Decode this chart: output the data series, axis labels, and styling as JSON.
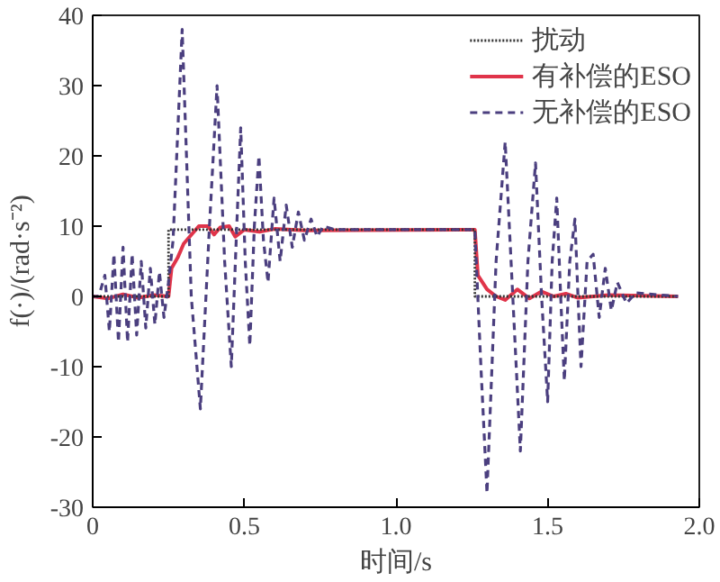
{
  "chart_data": {
    "type": "line",
    "xlabel": "时间/s",
    "ylabel": "f(·)/(rad·s⁻²)",
    "xlim": [
      0,
      2
    ],
    "ylim": [
      -30,
      40
    ],
    "xticks": [
      0,
      0.5,
      {
        "value": 1,
        "label": "1.0"
      },
      1.5,
      {
        "value": 2,
        "label": "2.0"
      }
    ],
    "yticks": [
      -30,
      -20,
      -10,
      0,
      10,
      20,
      30,
      40
    ],
    "grid": false,
    "legend": "top right",
    "series": [
      {
        "name": "扰动",
        "color": "#333333",
        "line_style": "dotted",
        "x": [
          0,
          0.25,
          0.25,
          1.26,
          1.26,
          1.93
        ],
        "values": [
          0,
          0,
          9.5,
          9.5,
          0,
          0
        ]
      },
      {
        "name": "有补偿的ESO",
        "color": "#e0344a",
        "line_style": "solid",
        "x": [
          0,
          0.05,
          0.1,
          0.15,
          0.2,
          0.25,
          0.26,
          0.28,
          0.3,
          0.33,
          0.35,
          0.38,
          0.4,
          0.42,
          0.45,
          0.47,
          0.5,
          0.55,
          0.6,
          0.7,
          1.26,
          1.27,
          1.3,
          1.33,
          1.36,
          1.4,
          1.44,
          1.48,
          1.52,
          1.56,
          1.6,
          1.7,
          1.93
        ],
        "values": [
          0,
          -0.3,
          0.3,
          -0.2,
          0.2,
          0,
          4,
          5.5,
          7.5,
          9,
          10,
          10,
          8.8,
          9.8,
          10,
          8.5,
          9.5,
          9.2,
          9.6,
          9.4,
          9.5,
          3,
          1,
          0,
          -0.5,
          1,
          -0.3,
          0.7,
          0,
          0.4,
          -0.2,
          0.2,
          0
        ]
      },
      {
        "name": "无补偿的ESO",
        "color": "#4b3f7f",
        "line_style": "dashed",
        "x": [
          0,
          0.02,
          0.04,
          0.055,
          0.07,
          0.085,
          0.1,
          0.115,
          0.13,
          0.145,
          0.16,
          0.175,
          0.19,
          0.205,
          0.22,
          0.235,
          0.25,
          0.265,
          0.295,
          0.325,
          0.355,
          0.385,
          0.41,
          0.435,
          0.457,
          0.475,
          0.488,
          0.503,
          0.518,
          0.533,
          0.548,
          0.563,
          0.578,
          0.598,
          0.618,
          0.638,
          0.658,
          0.678,
          0.698,
          0.72,
          0.74,
          0.76,
          0.8,
          1.26,
          1.28,
          1.3,
          1.33,
          1.36,
          1.385,
          1.41,
          1.435,
          1.46,
          1.48,
          1.5,
          1.515,
          1.53,
          1.543,
          1.555,
          1.573,
          1.59,
          1.6,
          1.61,
          1.63,
          1.65,
          1.67,
          1.69,
          1.71,
          1.73,
          1.76,
          1.79,
          1.93
        ],
        "values": [
          0,
          0,
          3,
          -5,
          6,
          -6.5,
          7,
          -6.5,
          6,
          -5.5,
          5,
          -4.5,
          4,
          -4,
          3.5,
          -3,
          2,
          8,
          38,
          0,
          -16,
          10,
          30,
          5,
          -10,
          10,
          24,
          5,
          -7,
          10,
          20,
          8,
          2,
          14,
          5,
          13,
          7,
          12,
          8,
          11,
          8.5,
          10,
          9.5,
          9.5,
          -10,
          -28,
          5,
          22,
          0,
          -22,
          5,
          19,
          0,
          -15,
          5,
          14,
          0,
          -12,
          5,
          11,
          0,
          -10,
          5,
          6,
          -3,
          4,
          -2,
          2,
          -1,
          0.5,
          0
        ]
      }
    ]
  }
}
